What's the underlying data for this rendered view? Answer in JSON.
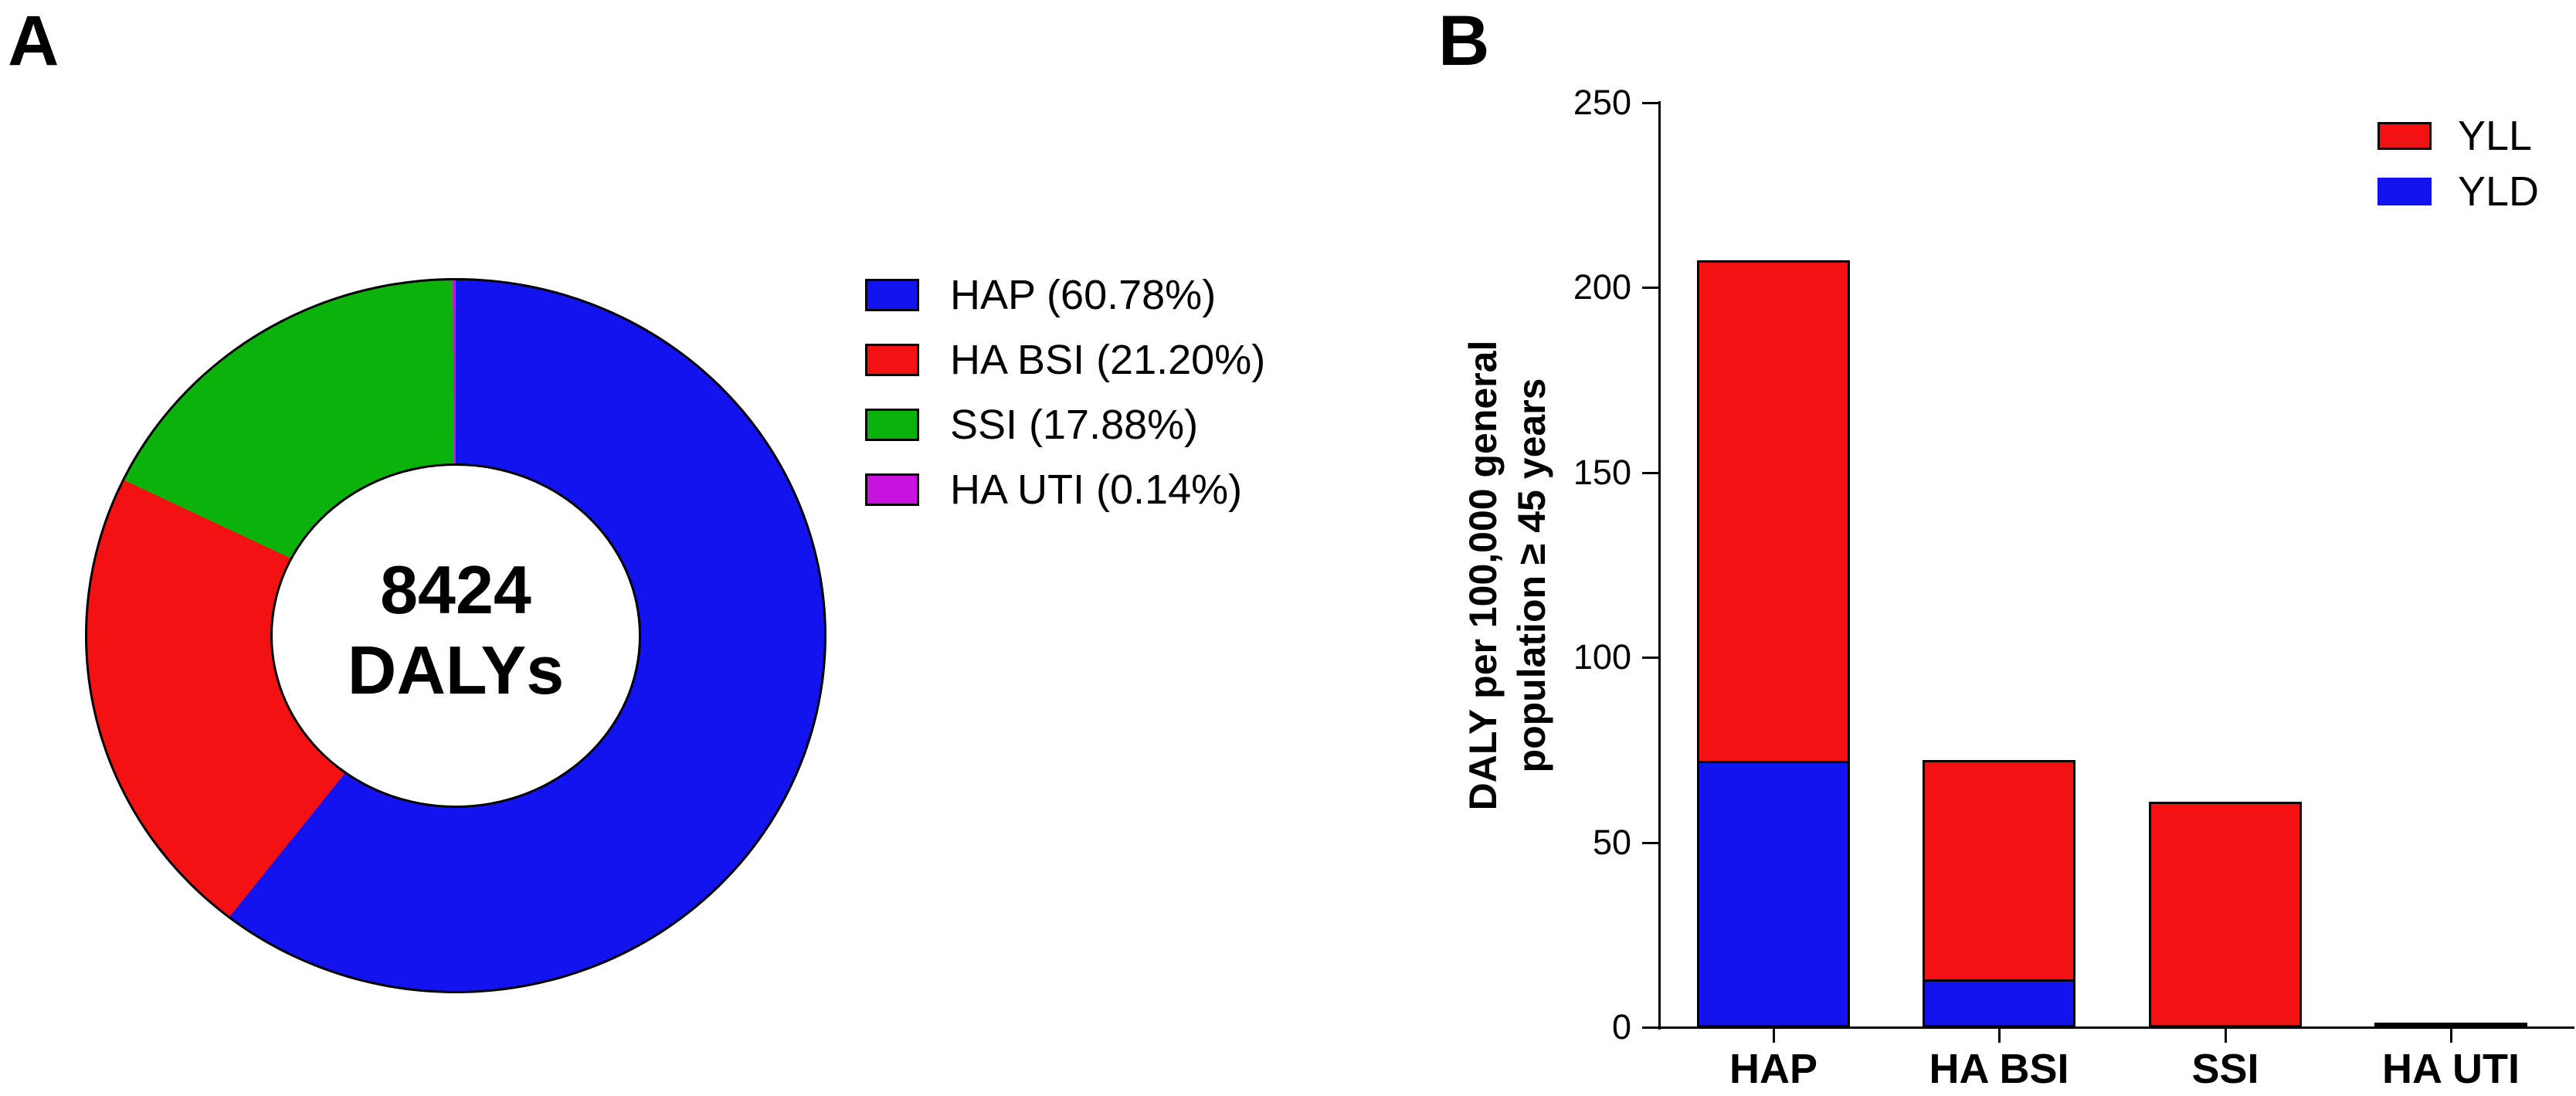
{
  "figure": {
    "panel_a": {
      "label": "A",
      "center_value": "8424",
      "center_label": "DALYs",
      "legend": [
        {
          "label": "HAP (60.78%)",
          "color": "#1313F0"
        },
        {
          "label": "HA BSI (21.20%)",
          "color": "#F21212"
        },
        {
          "label": "SSI (17.88%)",
          "color": "#0CB20C"
        },
        {
          "label": "HA UTI (0.14%)",
          "color": "#C713DB"
        }
      ]
    },
    "panel_b": {
      "label": "B",
      "ylabel_line1": "DALY per 100,000 general",
      "ylabel_line2": "population ≥ 45 years",
      "legend": [
        {
          "label": "YLL",
          "color": "#F21212",
          "bordered": true
        },
        {
          "label": "YLD",
          "color": "#1313F0",
          "bordered": false
        }
      ]
    }
  },
  "chart_data": [
    {
      "type": "pie",
      "variant": "donut",
      "labels": [
        "HAP",
        "HA BSI",
        "SSI",
        "HA UTI"
      ],
      "values": [
        60.78,
        21.2,
        17.88,
        0.14
      ],
      "colors": [
        "#1313F0",
        "#F21212",
        "#0CB20C",
        "#C713DB"
      ],
      "center_text": [
        "8424",
        "DALYs"
      ],
      "start_angle_deg": 0,
      "direction": "clockwise",
      "legend_position": "right"
    },
    {
      "type": "bar",
      "stacked": true,
      "categories": [
        "HAP",
        "HA BSI",
        "SSI",
        "HA UTI"
      ],
      "series": [
        {
          "name": "YLL",
          "color": "#F21212",
          "values": [
            136,
            60,
            61,
            0
          ]
        },
        {
          "name": "YLD",
          "color": "#1313F0",
          "values": [
            72,
            13,
            0,
            1
          ]
        }
      ],
      "totals": [
        208,
        73,
        61,
        1
      ],
      "ylabel_lines": [
        "DALY per 100,000 general",
        "population ≥ 45 years"
      ],
      "xlabel": "",
      "ylim": [
        0,
        250
      ],
      "yticks": [
        0,
        50,
        100,
        150,
        200,
        250
      ],
      "grid": false,
      "legend_position": "top-right"
    }
  ]
}
